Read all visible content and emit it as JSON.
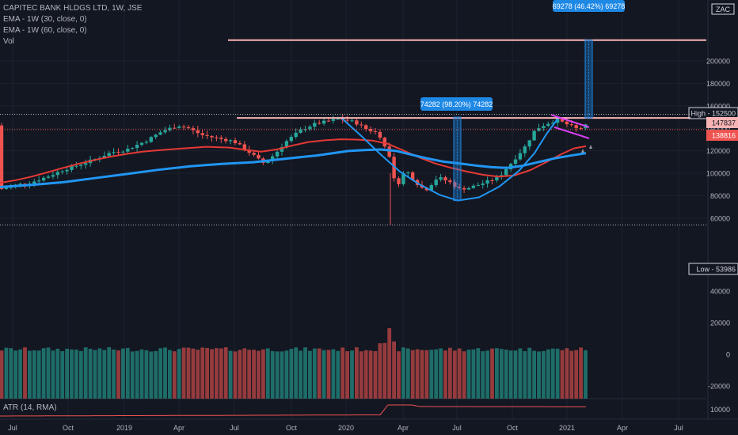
{
  "legend": {
    "title": "CAPITEC BANK HLDGS LTD, 1W, JSE",
    "ema30": "EMA - 1W (30, close, 0)",
    "ema60": "EMA - 1W (60, close, 0)",
    "vol": "Vol"
  },
  "atr_label": "ATR (14, RMA)",
  "colors": {
    "background": "#131722",
    "up": "#26a69a",
    "down": "#ef5350",
    "ema30": "#e53935",
    "ema60": "#2196f3",
    "cup": "#2196f3",
    "resistance": "#f8b4b4",
    "channel": "#e040fb",
    "measure_box": "#1e88e5",
    "grid": "#1e222d",
    "axis_text": "#b2b5be"
  },
  "chart_data": {
    "type": "candlestick",
    "title": "CAPITEC BANK HLDGS LTD, 1W, JSE",
    "currency_label": "ZAC",
    "price_axis_ticks": [
      60000,
      80000,
      100000,
      120000,
      140000,
      160000,
      180000,
      200000
    ],
    "volume_axis_ticks": [
      "40000",
      "20000",
      "0",
      "-20000"
    ],
    "atr_axis_ticks": [
      "10000"
    ],
    "time_axis_labels": [
      "Jul",
      "Oct",
      "2019",
      "Apr",
      "Jul",
      "Oct",
      "2020",
      "Apr",
      "Jul",
      "Oct",
      "2021",
      "Apr",
      "Jul"
    ],
    "y_range": [
      50000,
      220000
    ],
    "price_markers": [
      {
        "label": "High",
        "value": "152500"
      },
      {
        "label": "",
        "value": "147837"
      },
      {
        "label": "",
        "value": "138816"
      },
      {
        "label": "Low",
        "value": "53986"
      }
    ],
    "measurements": [
      {
        "text": "74282 (98.20%) 74282",
        "from": 75640,
        "to": 149922
      },
      {
        "text": "69278 (46.42%) 69278",
        "from": 149200,
        "to": 218478
      }
    ],
    "resistance_level": 149200,
    "target_level": 218478,
    "ema30": [
      [
        0,
        91500
      ],
      [
        20,
        93800
      ],
      [
        40,
        97000
      ],
      [
        60,
        100800
      ],
      [
        80,
        104800
      ],
      [
        100,
        108500
      ],
      [
        120,
        111800
      ],
      [
        140,
        114800
      ],
      [
        160,
        117200
      ],
      [
        180,
        119200
      ],
      [
        200,
        120400
      ],
      [
        230,
        122000
      ],
      [
        260,
        123500
      ],
      [
        290,
        122800
      ],
      [
        310,
        120800
      ],
      [
        330,
        119200
      ],
      [
        350,
        121200
      ],
      [
        370,
        124800
      ],
      [
        390,
        127800
      ],
      [
        410,
        129300
      ],
      [
        430,
        130200
      ],
      [
        450,
        129900
      ],
      [
        470,
        129100
      ],
      [
        490,
        126100
      ],
      [
        510,
        120100
      ],
      [
        530,
        113900
      ],
      [
        550,
        108600
      ],
      [
        570,
        104700
      ],
      [
        590,
        101400
      ],
      [
        610,
        98600
      ],
      [
        630,
        96900
      ],
      [
        650,
        98100
      ],
      [
        670,
        102800
      ],
      [
        690,
        109900
      ],
      [
        710,
        117300
      ],
      [
        725,
        122200
      ],
      [
        740,
        124000
      ]
    ],
    "ema60": [
      [
        0,
        87700
      ],
      [
        40,
        89600
      ],
      [
        80,
        92000
      ],
      [
        120,
        95600
      ],
      [
        160,
        99300
      ],
      [
        200,
        103000
      ],
      [
        240,
        106200
      ],
      [
        280,
        108300
      ],
      [
        320,
        109800
      ],
      [
        360,
        112900
      ],
      [
        400,
        115800
      ],
      [
        440,
        119800
      ],
      [
        460,
        120600
      ],
      [
        480,
        121100
      ],
      [
        500,
        119900
      ],
      [
        520,
        116400
      ],
      [
        540,
        113100
      ],
      [
        560,
        110300
      ],
      [
        580,
        108700
      ],
      [
        600,
        106900
      ],
      [
        620,
        105400
      ],
      [
        640,
        104700
      ],
      [
        660,
        106600
      ],
      [
        680,
        109900
      ],
      [
        700,
        113200
      ],
      [
        720,
        115600
      ],
      [
        740,
        117800
      ]
    ],
    "cup": [
      [
        430,
        150000
      ],
      [
        455,
        134000
      ],
      [
        480,
        117200
      ],
      [
        505,
        101400
      ],
      [
        530,
        89900
      ],
      [
        555,
        80800
      ],
      [
        578,
        75640
      ],
      [
        605,
        78500
      ],
      [
        630,
        87800
      ],
      [
        655,
        101900
      ],
      [
        675,
        117800
      ],
      [
        690,
        134800
      ],
      [
        705,
        149200
      ]
    ],
    "volume_first_bar_value": 33000
  }
}
